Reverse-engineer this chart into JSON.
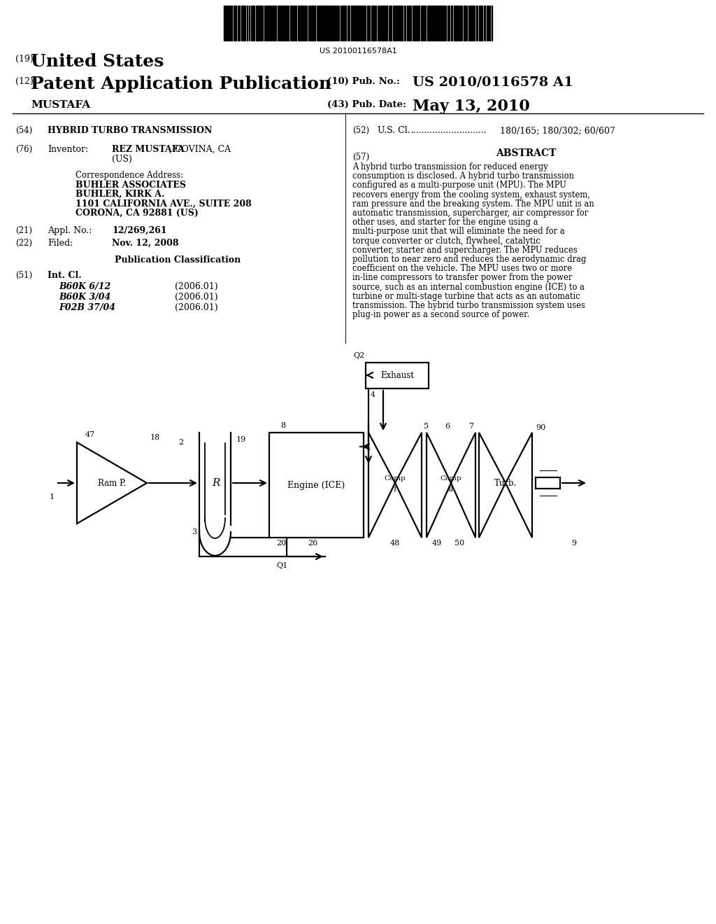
{
  "bg_color": "#ffffff",
  "barcode_text": "US 20100116578A1",
  "hdr19": "(19)",
  "hdr19_val": "United States",
  "hdr12": "(12)",
  "hdr12_val": "Patent Application Publication",
  "hdr_inventor": "MUSTAFA",
  "hdr10": "(10) Pub. No.:",
  "hdr10_val": "US 2010/0116578 A1",
  "hdr43": "(43) Pub. Date:",
  "hdr43_val": "May 13, 2010",
  "f54": "(54)",
  "f54_val": "HYBRID TURBO TRANSMISSION",
  "f52": "(52)",
  "f52_name": "U.S. Cl.",
  "f52_dots": "............................",
  "f52_val": "180/165; 180/302; 60/607",
  "f76": "(76)",
  "f76_name": "Inventor:",
  "f76_bold": "REZ MUSTAFA",
  "f76_rest": ", COVINA, CA",
  "f76_line2": "(US)",
  "corr0": "Correspondence Address:",
  "corr1": "BUHLER ASSOCIATES",
  "corr2": "BUHLER, KIRK A.",
  "corr3": "1101 CALIFORNIA AVE., SUITE 208",
  "corr4": "CORONA, CA 92881 (US)",
  "f21": "(21)",
  "f21_name": "Appl. No.:",
  "f21_val": "12/269,261",
  "f22": "(22)",
  "f22_name": "Filed:",
  "f22_val": "Nov. 12, 2008",
  "pub_class": "Publication Classification",
  "f51": "(51)",
  "f51_name": "Int. Cl.",
  "cls": [
    [
      "B60K 6/12",
      "(2006.01)"
    ],
    [
      "B60K 3/04",
      "(2006.01)"
    ],
    [
      "F02B 37/04",
      "(2006.01)"
    ]
  ],
  "f57": "(57)",
  "abs_title": "ABSTRACT",
  "abstract": "A hybrid turbo transmission for reduced energy consumption is disclosed. A hybrid turbo transmission configured as a multi-purpose unit (MPU). The MPU recovers energy from the cooling system, exhaust system, ram pressure and the breaking system. The MPU unit is an automatic transmission, supercharger, air compressor for other uses, and starter for the engine using a multi-purpose unit that will eliminate the need for a torque converter or clutch, flywheel, catalytic converter, starter and supercharger. The MPU reduces pollution to near zero and reduces the aerodynamic drag coefficient on the vehicle. The MPU uses two or more in-line compressors to transfer power from the power source, such as an internal combustion engine (ICE) to a turbine or multi-stage turbine that acts as an automatic transmission. The hybrid turbo transmission system uses plug-in power as a second source of power."
}
